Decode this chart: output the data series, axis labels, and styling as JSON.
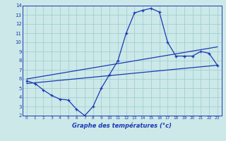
{
  "xlabel": "Graphe des températures (°c)",
  "xlim": [
    -0.5,
    23.5
  ],
  "ylim": [
    2,
    14
  ],
  "xticks": [
    0,
    1,
    2,
    3,
    4,
    5,
    6,
    7,
    8,
    9,
    10,
    11,
    12,
    13,
    14,
    15,
    16,
    17,
    18,
    19,
    20,
    21,
    22,
    23
  ],
  "yticks": [
    2,
    3,
    4,
    5,
    6,
    7,
    8,
    9,
    10,
    11,
    12,
    13,
    14
  ],
  "bg_color": "#cce8e8",
  "grid_color": "#99cccc",
  "line_color": "#1a3ab5",
  "line1_x": [
    0,
    1,
    2,
    3,
    4,
    5,
    6,
    7,
    8,
    9,
    10,
    11,
    12,
    13,
    14,
    15,
    16,
    17,
    18,
    19,
    20,
    21,
    22,
    23
  ],
  "line1_y": [
    5.8,
    5.5,
    4.8,
    4.2,
    3.8,
    3.7,
    2.7,
    2.0,
    3.0,
    5.0,
    6.5,
    8.0,
    11.0,
    13.2,
    13.5,
    13.7,
    13.3,
    10.0,
    8.5,
    8.5,
    8.5,
    9.0,
    8.8,
    7.5
  ],
  "line2_x": [
    0,
    23
  ],
  "line2_y": [
    6.0,
    9.5
  ],
  "line3_x": [
    0,
    23
  ],
  "line3_y": [
    5.5,
    7.5
  ]
}
